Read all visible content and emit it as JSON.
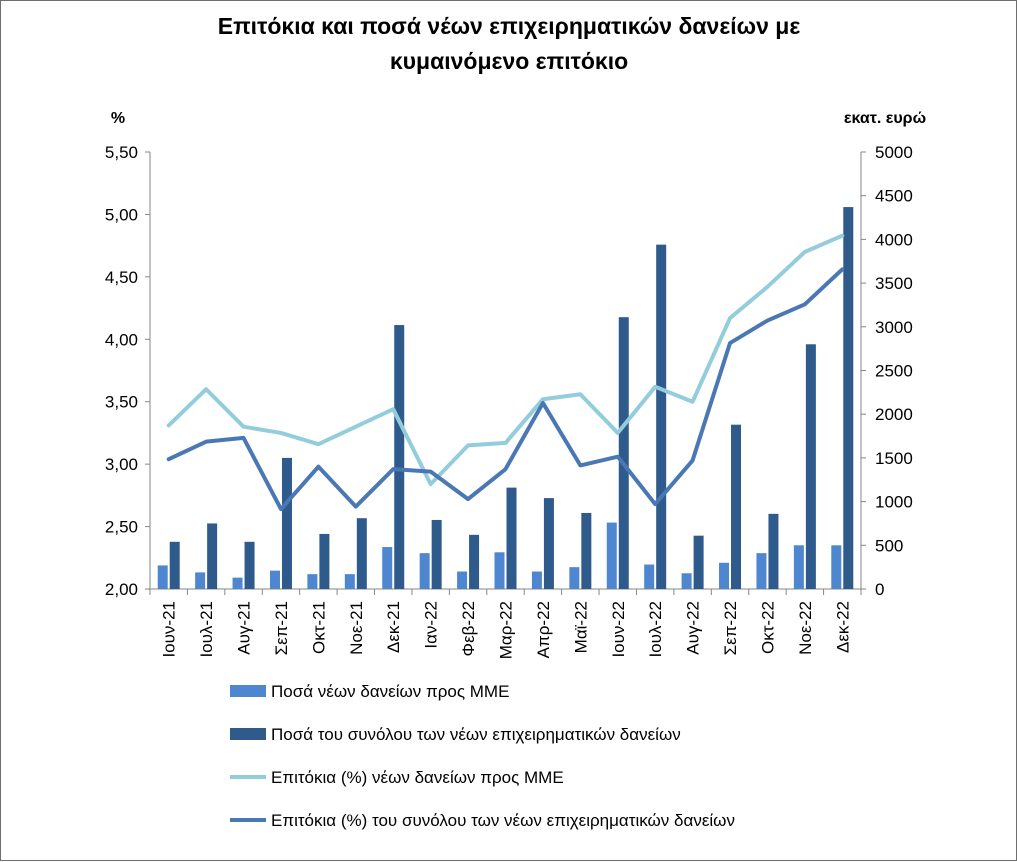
{
  "chart_data": {
    "type": "bar",
    "title_line1": "Επιτόκια και ποσά νέων επιχειρηματικών δανείων με",
    "title_line2": "κυμαινόμενο επιτόκιο",
    "ylabel_left": "%",
    "ylabel_right": "εκατ. ευρώ",
    "ylim_left": [
      2.0,
      5.5
    ],
    "ylim_right": [
      0,
      5000
    ],
    "left_ticks": [
      "2,00",
      "2,50",
      "3,00",
      "3,50",
      "4,00",
      "4,50",
      "5,00",
      "5,50"
    ],
    "right_ticks": [
      "0",
      "500",
      "1000",
      "1500",
      "2000",
      "2500",
      "3000",
      "3500",
      "4000",
      "4500",
      "5000"
    ],
    "grid": false,
    "legend_position": "bottom",
    "categories": [
      "Ιουν-21",
      "Ιουλ-21",
      "Αυγ-21",
      "Σεπ-21",
      "Οκτ-21",
      "Νοε-21",
      "Δεκ-21",
      "Ιαν-22",
      "Φεβ-22",
      "Μαρ-22",
      "Απρ-22",
      "Μαϊ-22",
      "Ιουν-22",
      "Ιουλ-22",
      "Αυγ-22",
      "Σεπ-22",
      "Οκτ-22",
      "Νοε-22",
      "Δεκ-22"
    ],
    "series": [
      {
        "name": "Ποσά νέων δανείων προς ΜΜΕ",
        "kind": "bar",
        "axis": "right",
        "color": "#4f86d0",
        "values": [
          270,
          190,
          130,
          210,
          170,
          170,
          480,
          410,
          200,
          420,
          200,
          250,
          760,
          280,
          180,
          300,
          410,
          500,
          500
        ]
      },
      {
        "name": "Ποσά του συνόλου των νέων επιχειρηματικών δανείων",
        "kind": "bar",
        "axis": "right",
        "color": "#2e5a8c",
        "values": [
          540,
          750,
          540,
          1500,
          630,
          810,
          3020,
          790,
          620,
          1160,
          1040,
          870,
          3110,
          3940,
          610,
          1880,
          860,
          2800,
          4370
        ]
      },
      {
        "name": "Επιτόκια (%) νέων δανείων προς ΜΜΕ",
        "kind": "line",
        "axis": "left",
        "color": "#93cddb",
        "values": [
          3.31,
          3.6,
          3.3,
          3.25,
          3.16,
          3.3,
          3.44,
          2.84,
          3.15,
          3.17,
          3.52,
          3.56,
          3.25,
          3.62,
          3.5,
          4.17,
          4.42,
          4.7,
          4.83
        ]
      },
      {
        "name": "Επιτόκια (%) του συνόλου των νέων επιχειρηματικών δανείων",
        "kind": "line",
        "axis": "left",
        "color": "#4a78b4",
        "values": [
          3.04,
          3.18,
          3.21,
          2.64,
          2.98,
          2.66,
          2.96,
          2.94,
          2.72,
          2.96,
          3.49,
          2.99,
          3.06,
          2.68,
          3.03,
          3.97,
          4.15,
          4.28,
          4.56
        ]
      }
    ]
  }
}
